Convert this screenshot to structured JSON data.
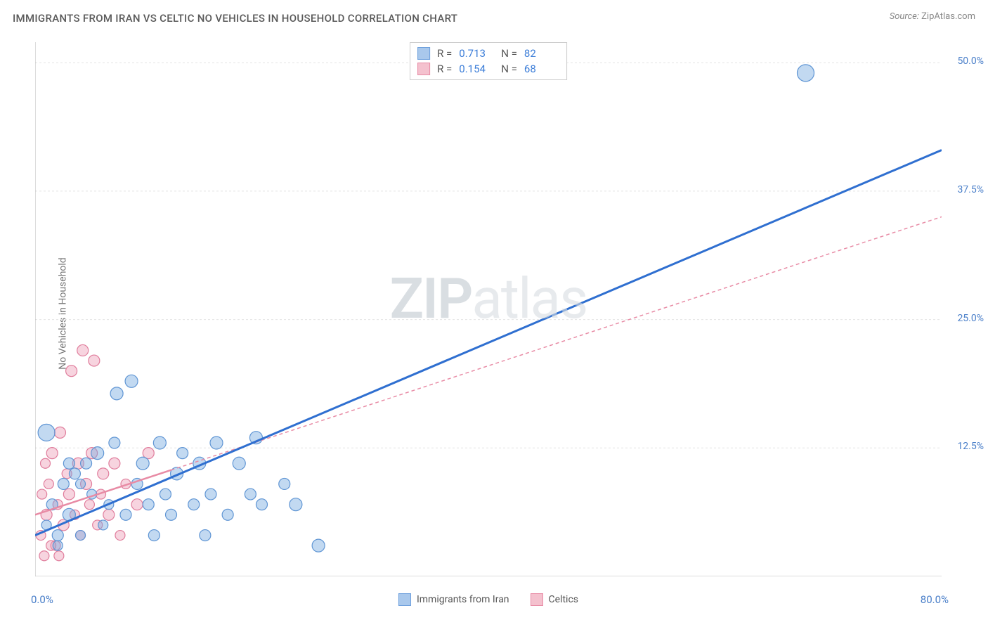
{
  "header": {
    "title": "IMMIGRANTS FROM IRAN VS CELTIC NO VEHICLES IN HOUSEHOLD CORRELATION CHART",
    "source_label": "Source:",
    "source_value": "ZipAtlas.com"
  },
  "watermark": {
    "part1": "ZIP",
    "part2": "atlas"
  },
  "chart": {
    "type": "scatter",
    "y_label": "No Vehicles in Household",
    "x_range": [
      0,
      80
    ],
    "y_range": [
      0,
      52
    ],
    "x_origin_label": "0.0%",
    "x_max_label": "80.0%",
    "y_ticks": [
      {
        "v": 12.5,
        "label": "12.5%"
      },
      {
        "v": 25.0,
        "label": "25.0%"
      },
      {
        "v": 37.5,
        "label": "37.5%"
      },
      {
        "v": 50.0,
        "label": "50.0%"
      }
    ],
    "x_tick_positions": [
      10,
      20,
      30,
      40,
      50,
      60,
      70
    ],
    "grid_color": "#e4e4e4",
    "axis_color": "#b8b8b8",
    "background": "#ffffff",
    "stats": [
      {
        "r_label": "R =",
        "r": "0.713",
        "n_label": "N =",
        "n": "82",
        "fill": "#a9c8ec",
        "stroke": "#6ea0dd"
      },
      {
        "r_label": "R =",
        "r": "0.154",
        "n_label": "N =",
        "n": "68",
        "fill": "#f4c1ce",
        "stroke": "#e88ba5"
      }
    ],
    "legend": [
      {
        "label": "Immigrants from Iran",
        "fill": "#a9c8ec",
        "stroke": "#6ea0dd"
      },
      {
        "label": "Celtics",
        "fill": "#f4c1ce",
        "stroke": "#e88ba5"
      }
    ],
    "series_blue": {
      "fill": "rgba(120,170,225,0.45)",
      "stroke": "#5f95d4",
      "trend_stroke": "#2f6fd0",
      "trend_width": 3,
      "trend": {
        "x1": 0,
        "y1": 4.0,
        "x2": 80,
        "y2": 41.5
      },
      "points": [
        {
          "x": 1,
          "y": 5,
          "r": 7
        },
        {
          "x": 1.5,
          "y": 7,
          "r": 8
        },
        {
          "x": 2,
          "y": 3,
          "r": 7
        },
        {
          "x": 2.5,
          "y": 9,
          "r": 8
        },
        {
          "x": 3,
          "y": 6,
          "r": 9
        },
        {
          "x": 3.5,
          "y": 10,
          "r": 8
        },
        {
          "x": 4,
          "y": 4,
          "r": 7
        },
        {
          "x": 4.5,
          "y": 11,
          "r": 8
        },
        {
          "x": 5,
          "y": 8,
          "r": 7
        },
        {
          "x": 5.5,
          "y": 12,
          "r": 9
        },
        {
          "x": 6,
          "y": 5,
          "r": 7
        },
        {
          "x": 6.5,
          "y": 7,
          "r": 7
        },
        {
          "x": 7,
          "y": 13,
          "r": 8
        },
        {
          "x": 7.2,
          "y": 17.8,
          "r": 9
        },
        {
          "x": 8,
          "y": 6,
          "r": 8
        },
        {
          "x": 8.5,
          "y": 19,
          "r": 9
        },
        {
          "x": 9,
          "y": 9,
          "r": 8
        },
        {
          "x": 9.5,
          "y": 11,
          "r": 9
        },
        {
          "x": 10,
          "y": 7,
          "r": 8
        },
        {
          "x": 10.5,
          "y": 4,
          "r": 8
        },
        {
          "x": 11,
          "y": 13,
          "r": 9
        },
        {
          "x": 11.5,
          "y": 8,
          "r": 8
        },
        {
          "x": 12,
          "y": 6,
          "r": 8
        },
        {
          "x": 12.5,
          "y": 10,
          "r": 9
        },
        {
          "x": 13,
          "y": 12,
          "r": 8
        },
        {
          "x": 14,
          "y": 7,
          "r": 8
        },
        {
          "x": 14.5,
          "y": 11,
          "r": 9
        },
        {
          "x": 15,
          "y": 4,
          "r": 8
        },
        {
          "x": 15.5,
          "y": 8,
          "r": 8
        },
        {
          "x": 16,
          "y": 13,
          "r": 9
        },
        {
          "x": 17,
          "y": 6,
          "r": 8
        },
        {
          "x": 18,
          "y": 11,
          "r": 9
        },
        {
          "x": 19,
          "y": 8,
          "r": 8
        },
        {
          "x": 19.5,
          "y": 13.5,
          "r": 9
        },
        {
          "x": 20,
          "y": 7,
          "r": 8
        },
        {
          "x": 22,
          "y": 9,
          "r": 8
        },
        {
          "x": 23,
          "y": 7,
          "r": 9
        },
        {
          "x": 25,
          "y": 3,
          "r": 9
        },
        {
          "x": 68,
          "y": 49,
          "r": 12
        },
        {
          "x": 1,
          "y": 14,
          "r": 12
        },
        {
          "x": 2,
          "y": 4,
          "r": 8
        },
        {
          "x": 3,
          "y": 11,
          "r": 8
        },
        {
          "x": 4,
          "y": 9,
          "r": 7
        }
      ]
    },
    "series_pink": {
      "fill": "rgba(238,160,185,0.45)",
      "stroke": "#e07d9c",
      "trend_stroke": "#e88ba5",
      "trend_width": 1.5,
      "trend_dash": "5,4",
      "trend_solid_end": 12,
      "trend": {
        "x1": 0,
        "y1": 6.0,
        "x2": 80,
        "y2": 35.0
      },
      "points": [
        {
          "x": 0.5,
          "y": 4,
          "r": 7
        },
        {
          "x": 1,
          "y": 6,
          "r": 8
        },
        {
          "x": 1.2,
          "y": 9,
          "r": 7
        },
        {
          "x": 1.5,
          "y": 12,
          "r": 8
        },
        {
          "x": 1.8,
          "y": 3,
          "r": 7
        },
        {
          "x": 2,
          "y": 7,
          "r": 7
        },
        {
          "x": 2.2,
          "y": 14,
          "r": 8
        },
        {
          "x": 2.5,
          "y": 5,
          "r": 8
        },
        {
          "x": 2.8,
          "y": 10,
          "r": 7
        },
        {
          "x": 3,
          "y": 8,
          "r": 8
        },
        {
          "x": 3.2,
          "y": 20,
          "r": 8
        },
        {
          "x": 3.5,
          "y": 6,
          "r": 7
        },
        {
          "x": 3.8,
          "y": 11,
          "r": 8
        },
        {
          "x": 4,
          "y": 4,
          "r": 7
        },
        {
          "x": 4.2,
          "y": 22,
          "r": 8
        },
        {
          "x": 4.5,
          "y": 9,
          "r": 8
        },
        {
          "x": 4.8,
          "y": 7,
          "r": 7
        },
        {
          "x": 5,
          "y": 12,
          "r": 8
        },
        {
          "x": 5.2,
          "y": 21,
          "r": 8
        },
        {
          "x": 5.5,
          "y": 5,
          "r": 7
        },
        {
          "x": 5.8,
          "y": 8,
          "r": 7
        },
        {
          "x": 6,
          "y": 10,
          "r": 8
        },
        {
          "x": 6.5,
          "y": 6,
          "r": 8
        },
        {
          "x": 7,
          "y": 11,
          "r": 8
        },
        {
          "x": 7.5,
          "y": 4,
          "r": 7
        },
        {
          "x": 8,
          "y": 9,
          "r": 7
        },
        {
          "x": 9,
          "y": 7,
          "r": 8
        },
        {
          "x": 10,
          "y": 12,
          "r": 8
        },
        {
          "x": 0.8,
          "y": 2,
          "r": 7
        },
        {
          "x": 1.4,
          "y": 3,
          "r": 7
        },
        {
          "x": 2.1,
          "y": 2,
          "r": 7
        },
        {
          "x": 0.6,
          "y": 8,
          "r": 7
        },
        {
          "x": 0.9,
          "y": 11,
          "r": 7
        }
      ]
    }
  }
}
